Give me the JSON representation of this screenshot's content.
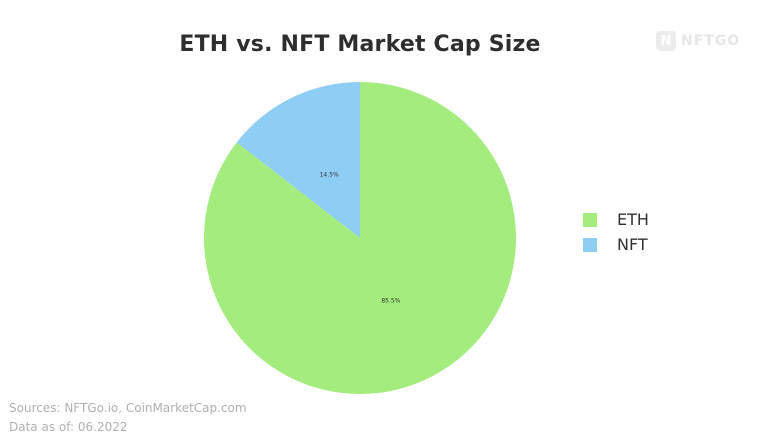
{
  "logo": {
    "text": "NFTGO",
    "mark": "N"
  },
  "footer": {
    "sources": "Sources: NFTGo.io, CoinMarketCap.com",
    "date": "Data as of: 06.2022"
  },
  "chart_data": {
    "type": "pie",
    "title": "ETH vs. NFT Market Cap Size",
    "categories": [
      "ETH",
      "NFT"
    ],
    "values": [
      85.5,
      14.5
    ],
    "labels": [
      "85.5%",
      "14.5%"
    ],
    "colors": [
      "#a3ec7d",
      "#8ecdf4"
    ],
    "legend_position": "right",
    "start_angle": "top, counter-clockwise for NFT"
  }
}
